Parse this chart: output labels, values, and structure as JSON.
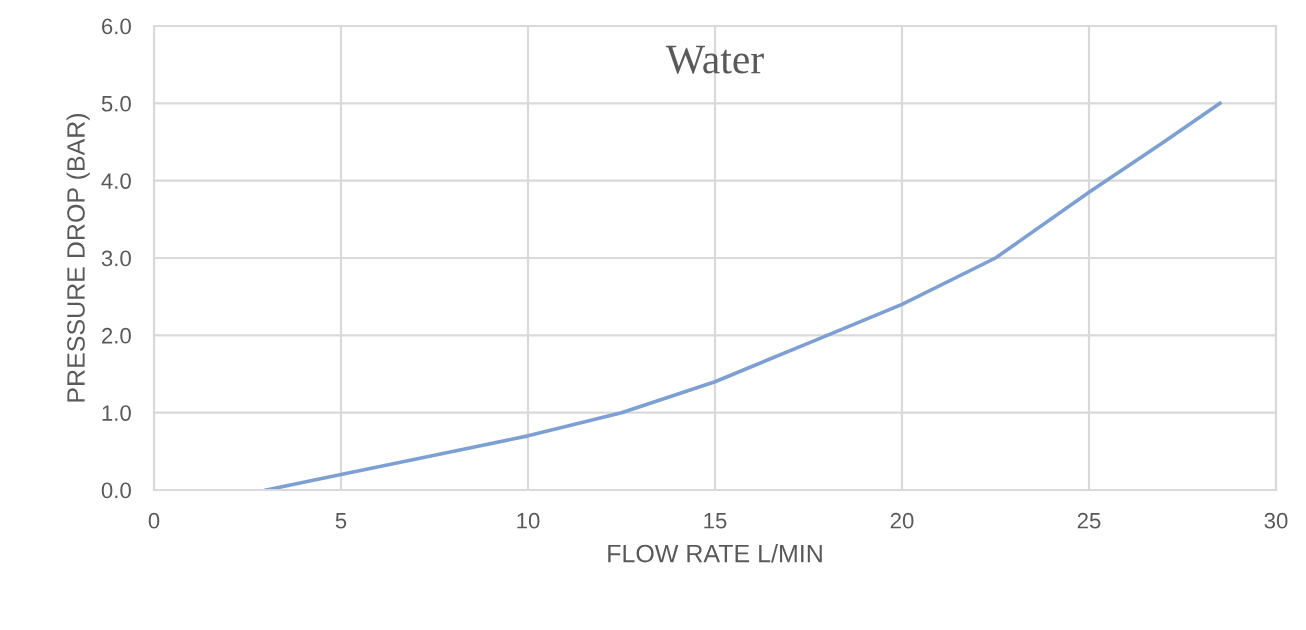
{
  "chart_data": {
    "type": "line",
    "title": "Water",
    "xlabel": "FLOW RATE L/MIN",
    "ylabel": "PRESSURE DROP (BAR)",
    "x": [
      3,
      5,
      7.5,
      10,
      12.5,
      15,
      17.5,
      20,
      22.5,
      25,
      27,
      28.5
    ],
    "series": [
      {
        "color": "#7da0d4",
        "values": [
          0,
          0.2,
          0.45,
          0.7,
          1.0,
          1.4,
          1.9,
          2.4,
          3.0,
          3.85,
          4.5,
          5.0
        ]
      }
    ],
    "xlim": [
      0,
      30
    ],
    "xticks": [
      0,
      5,
      10,
      15,
      20,
      25,
      30
    ],
    "ylim": [
      0,
      6
    ],
    "yticks": [
      {
        "value": 0,
        "label": "0.0"
      },
      {
        "value": 1,
        "label": "1.0"
      },
      {
        "value": 2,
        "label": "2.0"
      },
      {
        "value": 3,
        "label": "3.0"
      },
      {
        "value": 4,
        "label": "4.0"
      },
      {
        "value": 5,
        "label": "5.0"
      },
      {
        "value": 6,
        "label": "6.0"
      }
    ],
    "grid": true,
    "marker": "none",
    "line_style": "solid"
  }
}
